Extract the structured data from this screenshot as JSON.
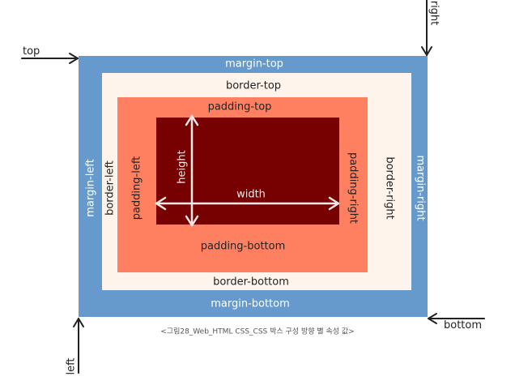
{
  "colors": {
    "margin": "#6699cc",
    "border": "#fff4ec",
    "padding": "#ff8060",
    "content": "#770000",
    "arrow": "#222222",
    "dimension": "#f2e6e6"
  },
  "labels": {
    "margin_top": "margin-top",
    "margin_bottom": "margin-bottom",
    "margin_left": "margin-left",
    "margin_right": "margin-right",
    "border_top": "border-top",
    "border_bottom": "border-bottom",
    "border_left": "border-left",
    "border_right": "border-right",
    "padding_top": "padding-top",
    "padding_bottom": "padding-bottom",
    "padding_left": "padding-left",
    "padding_right": "padding-right",
    "width": "width",
    "height": "height"
  },
  "corners": {
    "top": "top",
    "right": "right",
    "bottom": "bottom",
    "left": "left"
  },
  "caption": "<그림28_Web_HTML CSS_CSS 박스 구성 방향 별 속성 값>"
}
